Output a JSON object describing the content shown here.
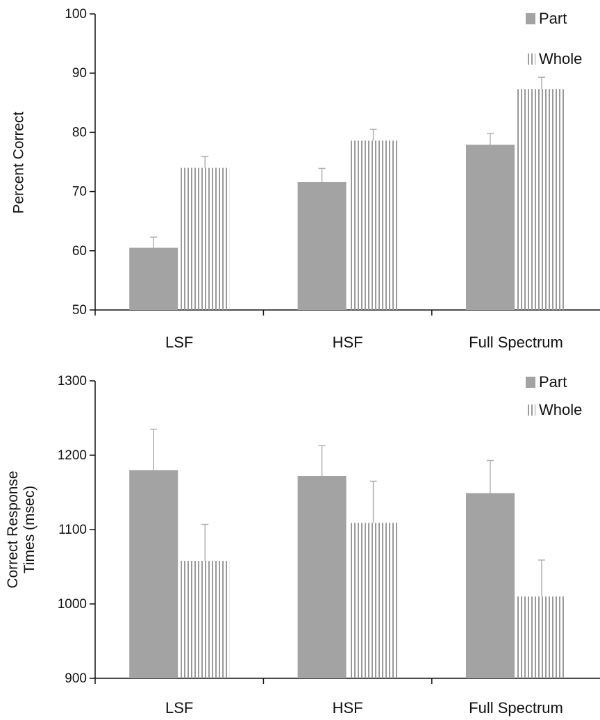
{
  "colors": {
    "part": "#a3a3a3",
    "whole_stripe": "#9a9a9a",
    "error_bar": "#b0b0b0",
    "axis": "#111111"
  },
  "chart_data": [
    {
      "type": "bar",
      "categories": [
        "LSF",
        "HSF",
        "Full Spectrum"
      ],
      "ylabel": [
        "Percent Correct"
      ],
      "ylim": [
        50,
        100
      ],
      "yticks": [
        "50",
        "60",
        "70",
        "80",
        "90",
        "100"
      ],
      "legend": {
        "placement": "top-right"
      },
      "series": [
        {
          "name": "Part",
          "pattern": "solid",
          "values": [
            60.5,
            71.6,
            77.9
          ],
          "errors": [
            1.8,
            2.3,
            1.9
          ]
        },
        {
          "name": "Whole",
          "pattern": "vertical-stripes",
          "values": [
            74.0,
            78.6,
            87.3
          ],
          "errors": [
            1.9,
            1.9,
            2.0
          ]
        }
      ]
    },
    {
      "type": "bar",
      "categories": [
        "LSF",
        "HSF",
        "Full Spectrum"
      ],
      "ylabel": [
        "Correct Response",
        "Times (msec)"
      ],
      "ylim": [
        900,
        1300
      ],
      "yticks": [
        "900",
        "1000",
        "1100",
        "1200",
        "1300"
      ],
      "legend": {
        "placement": "top-right"
      },
      "series": [
        {
          "name": "Part",
          "pattern": "solid",
          "values": [
            1180,
            1172,
            1149
          ],
          "errors": [
            55,
            41,
            44
          ]
        },
        {
          "name": "Whole",
          "pattern": "vertical-stripes",
          "values": [
            1058,
            1109,
            1010
          ],
          "errors": [
            49,
            56,
            49
          ]
        }
      ]
    }
  ]
}
